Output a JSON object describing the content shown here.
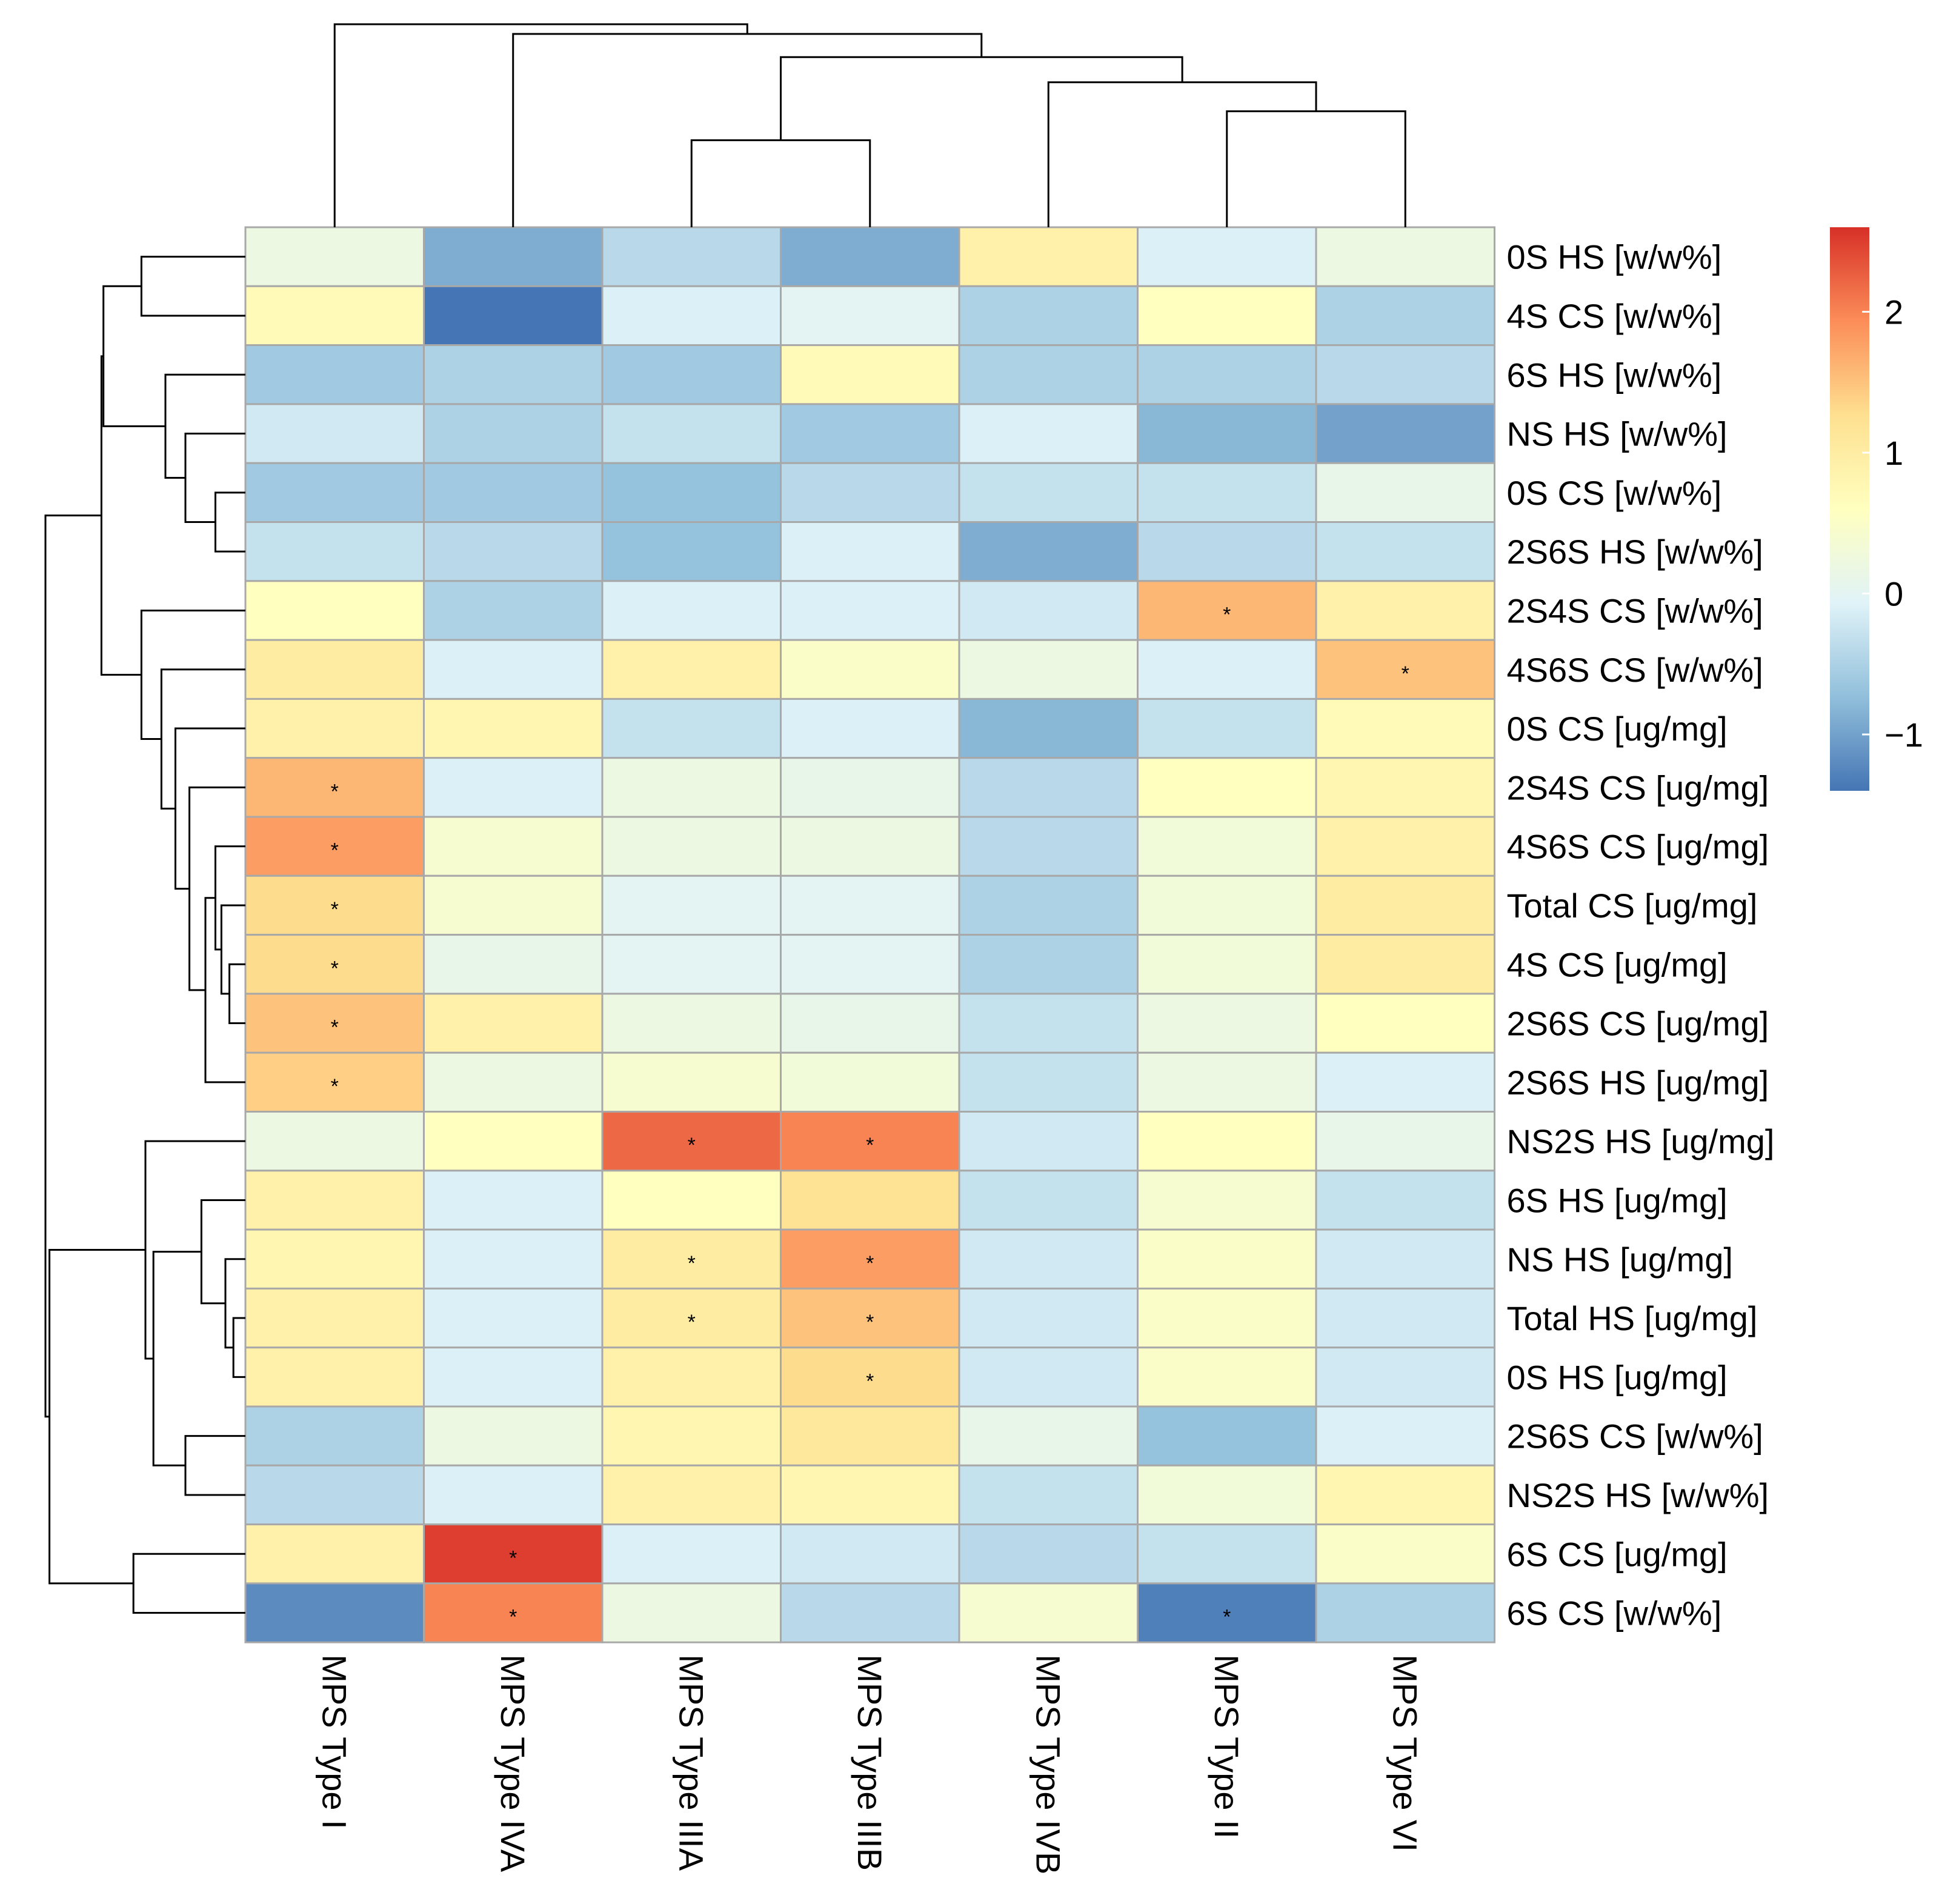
{
  "chart_data": {
    "type": "heatmap",
    "columns": [
      "MPS Type I",
      "MPS Type IVA",
      "MPS Type IIIA",
      "MPS Type IIIB",
      "MPS Type IVB",
      "MPS Type II",
      "MPS Type VI"
    ],
    "rows": [
      "0S HS [w/w%]",
      "4S CS [w/w%]",
      "6S HS [w/w%]",
      "NS HS [w/w%]",
      "0S CS [w/w%]",
      "2S6S HS [w/w%]",
      "2S4S CS [w/w%]",
      "4S6S CS [w/w%]",
      "0S CS [ug/mg]",
      "2S4S CS [ug/mg]",
      "4S6S CS [ug/mg]",
      "Total CS [ug/mg]",
      "4S CS [ug/mg]",
      "2S6S CS [ug/mg]",
      "2S6S HS [ug/mg]",
      "NS2S HS [ug/mg]",
      "6S HS [ug/mg]",
      "NS HS [ug/mg]",
      "Total HS [ug/mg]",
      "0S HS [ug/mg]",
      "2S6S CS [w/w%]",
      "NS2S HS [w/w%]",
      "6S CS [ug/mg]",
      "6S CS [w/w%]"
    ],
    "values": [
      [
        0.2,
        -0.9,
        -0.4,
        -0.9,
        0.9,
        -0.1,
        0.2
      ],
      [
        0.7,
        -1.4,
        -0.1,
        0.0,
        -0.5,
        0.6,
        -0.5
      ],
      [
        -0.6,
        -0.5,
        -0.6,
        0.7,
        -0.5,
        -0.5,
        -0.4
      ],
      [
        -0.2,
        -0.5,
        -0.3,
        -0.6,
        -0.1,
        -0.8,
        -1.0
      ],
      [
        -0.6,
        -0.6,
        -0.7,
        -0.4,
        -0.3,
        -0.3,
        0.1
      ],
      [
        -0.3,
        -0.4,
        -0.7,
        -0.1,
        -0.9,
        -0.4,
        -0.3
      ],
      [
        0.6,
        -0.5,
        -0.1,
        -0.1,
        -0.2,
        1.6,
        0.9
      ],
      [
        1.0,
        -0.1,
        0.9,
        0.5,
        0.2,
        -0.1,
        1.5
      ],
      [
        0.9,
        0.8,
        -0.3,
        -0.1,
        -0.8,
        -0.3,
        0.7
      ],
      [
        1.6,
        -0.1,
        0.2,
        0.1,
        -0.4,
        0.6,
        0.8
      ],
      [
        1.8,
        0.4,
        0.2,
        0.2,
        -0.4,
        0.3,
        0.9
      ],
      [
        1.3,
        0.4,
        0.0,
        0.0,
        -0.5,
        0.3,
        1.0
      ],
      [
        1.3,
        0.1,
        0.0,
        0.0,
        -0.5,
        0.3,
        1.0
      ],
      [
        1.5,
        0.9,
        0.2,
        0.1,
        -0.3,
        0.2,
        0.6
      ],
      [
        1.4,
        0.2,
        0.4,
        0.3,
        -0.3,
        0.2,
        -0.1
      ],
      [
        0.2,
        0.6,
        2.2,
        2.0,
        -0.2,
        0.6,
        0.1
      ],
      [
        0.9,
        -0.1,
        0.6,
        1.2,
        -0.3,
        0.4,
        -0.3
      ],
      [
        0.8,
        -0.1,
        1.0,
        1.8,
        -0.2,
        0.5,
        -0.2
      ],
      [
        0.9,
        -0.1,
        1.0,
        1.5,
        -0.2,
        0.5,
        -0.2
      ],
      [
        0.9,
        -0.1,
        0.9,
        1.3,
        -0.2,
        0.5,
        -0.2
      ],
      [
        -0.5,
        0.2,
        0.8,
        1.1,
        0.1,
        -0.7,
        -0.1
      ],
      [
        -0.4,
        -0.1,
        0.9,
        0.8,
        -0.3,
        0.3,
        0.8
      ],
      [
        0.9,
        2.5,
        -0.1,
        -0.2,
        -0.4,
        -0.3,
        0.5
      ],
      [
        -1.2,
        2.0,
        0.2,
        -0.4,
        0.4,
        -1.3,
        -0.5
      ]
    ],
    "significance_marker": "*",
    "significant_cells": [
      [
        6,
        5
      ],
      [
        7,
        6
      ],
      [
        9,
        0
      ],
      [
        10,
        0
      ],
      [
        11,
        0
      ],
      [
        12,
        0
      ],
      [
        13,
        0
      ],
      [
        14,
        0
      ],
      [
        15,
        2
      ],
      [
        15,
        3
      ],
      [
        17,
        2
      ],
      [
        17,
        3
      ],
      [
        18,
        2
      ],
      [
        18,
        3
      ],
      [
        19,
        3
      ],
      [
        22,
        1
      ],
      [
        23,
        1
      ],
      [
        23,
        5
      ]
    ],
    "colorbar": {
      "range": [
        -1.4,
        2.6
      ],
      "ticks": [
        -1,
        0,
        1,
        2
      ],
      "tick_labels": [
        "−1",
        "0",
        "1",
        "2"
      ],
      "colors": [
        "#4575B4",
        "#91BFDB",
        "#E0F3F8",
        "#FFFFBF",
        "#FEE090",
        "#FC8D59",
        "#D73027"
      ]
    },
    "column_dendrogram": {
      "merges": [
        {
          "left": "MPS Type IIIA",
          "right": "MPS Type IIIB",
          "height": 0.45
        },
        {
          "left": "MPS Type II",
          "right": "MPS Type VI",
          "height": 0.6
        },
        {
          "left": "MPS Type IVB",
          "right": "c2",
          "height": 0.75
        },
        {
          "left": "c1",
          "right": "c3",
          "height": 0.88
        },
        {
          "left": "MPS Type IVA",
          "right": "c4",
          "height": 1.0
        },
        {
          "left": "MPS Type I",
          "right": "c5",
          "height": 1.05
        }
      ]
    },
    "row_dendrogram": {
      "merges": [
        {
          "left": "0S CS [w/w%]",
          "right": "2S6S HS [w/w%]",
          "height": 0.15
        },
        {
          "left": "NS HS [w/w%]",
          "right": "m1",
          "height": 0.3
        },
        {
          "left": "6S HS [w/w%]",
          "right": "m2",
          "height": 0.4
        },
        {
          "left": "0S HS [w/w%]",
          "right": "4S CS [w/w%]",
          "height": 0.52
        },
        {
          "left": "m4",
          "right": "m3",
          "height": 0.71
        },
        {
          "left": "4S CS [ug/mg]",
          "right": "2S6S CS [ug/mg]",
          "height": 0.08
        },
        {
          "left": "Total CS [ug/mg]",
          "right": "m6",
          "height": 0.12
        },
        {
          "left": "4S6S CS [ug/mg]",
          "right": "m7",
          "height": 0.15
        },
        {
          "left": "m8",
          "right": "2S6S HS [ug/mg]",
          "height": 0.2
        },
        {
          "left": "2S4S CS [ug/mg]",
          "right": "m9",
          "height": 0.28
        },
        {
          "left": "0S CS [ug/mg]",
          "right": "m10",
          "height": 0.35
        },
        {
          "left": "4S6S CS [w/w%]",
          "right": "m11",
          "height": 0.42
        },
        {
          "left": "2S4S CS [w/w%]",
          "right": "m12",
          "height": 0.52
        },
        {
          "left": "m5",
          "right": "m13",
          "height": 0.72
        },
        {
          "left": "Total HS [ug/mg]",
          "right": "0S HS [ug/mg]",
          "height": 0.06
        },
        {
          "left": "NS HS [ug/mg]",
          "right": "m15",
          "height": 0.1
        },
        {
          "left": "6S HS [ug/mg]",
          "right": "m16",
          "height": 0.22
        },
        {
          "left": "2S6S CS [w/w%]",
          "right": "NS2S HS [w/w%]",
          "height": 0.3
        },
        {
          "left": "m17",
          "right": "m18",
          "height": 0.46
        },
        {
          "left": "NS2S HS [ug/mg]",
          "right": "m19",
          "height": 0.5
        },
        {
          "left": "6S CS [ug/mg]",
          "right": "6S CS [w/w%]",
          "height": 0.56
        },
        {
          "left": "m20",
          "right": "m21",
          "height": 0.98
        },
        {
          "left": "m14",
          "right": "m22",
          "height": 1.0
        }
      ]
    }
  }
}
